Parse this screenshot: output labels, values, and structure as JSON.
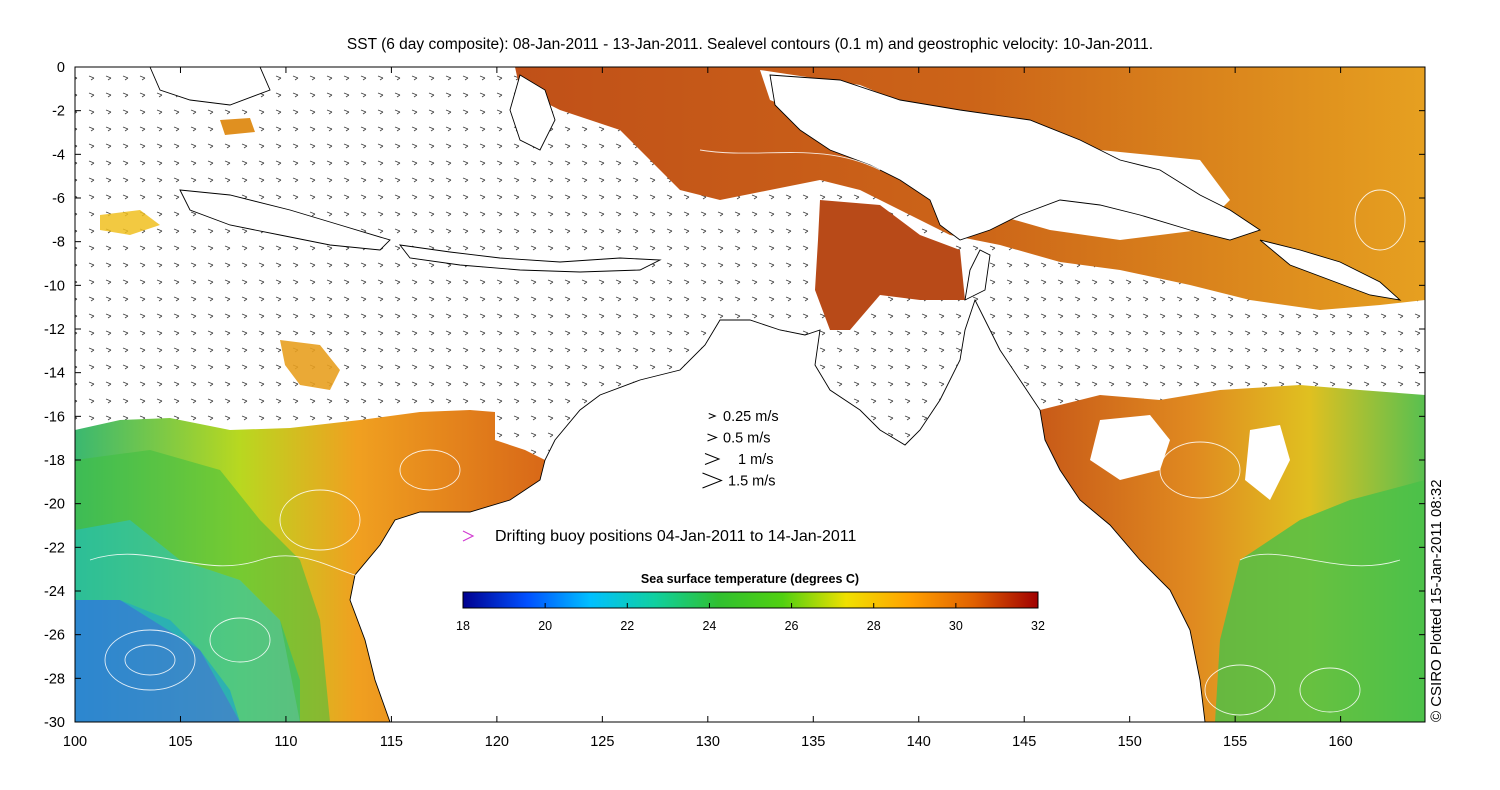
{
  "title": "SST (6 day composite): 08-Jan-2011 - 13-Jan-2011. Sealevel contours (0.1 m) and geostrophic velocity: 10-Jan-2011.",
  "credit": "© CSIRO Plotted 15-Jan-2011 08:32",
  "axes": {
    "x_ticks": [
      100,
      105,
      110,
      115,
      120,
      125,
      130,
      135,
      140,
      145,
      150,
      155,
      160
    ],
    "y_ticks": [
      0,
      -2,
      -4,
      -6,
      -8,
      -10,
      -12,
      -14,
      -16,
      -18,
      -20,
      -22,
      -24,
      -26,
      -28,
      -30
    ],
    "x_range": [
      100,
      164
    ],
    "y_range": [
      -30,
      0
    ]
  },
  "velocity_legend": [
    {
      "label": "0.25 m/s",
      "speed": 0.25
    },
    {
      "label": "0.5 m/s",
      "speed": 0.5
    },
    {
      "label": "1 m/s",
      "speed": 1
    },
    {
      "label": "1.5 m/s",
      "speed": 1.5
    }
  ],
  "buoy_legend": {
    "symbol": ">",
    "label": "Drifting buoy positions 04-Jan-2011 to 14-Jan-2011",
    "color": "#d23cd2"
  },
  "colorbar": {
    "title": "Sea surface temperature (degrees C)",
    "ticks": [
      18,
      20,
      22,
      24,
      26,
      28,
      30,
      32
    ],
    "range": [
      18,
      32
    ],
    "colors": [
      "#00008f",
      "#0050ff",
      "#00c0ff",
      "#10d0a0",
      "#30c030",
      "#50d010",
      "#f0e000",
      "#ffa000",
      "#e06000",
      "#a00000"
    ]
  }
}
